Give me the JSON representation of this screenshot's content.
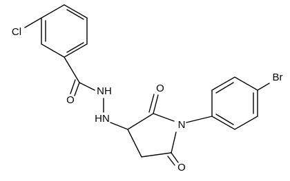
{
  "atoms": [
    {
      "label": "Cl"
    },
    {
      "label": "O"
    },
    {
      "label": "NH"
    },
    {
      "label": "HN"
    },
    {
      "label": "O"
    },
    {
      "label": "N"
    },
    {
      "label": "O"
    },
    {
      "label": "Br"
    }
  ]
}
